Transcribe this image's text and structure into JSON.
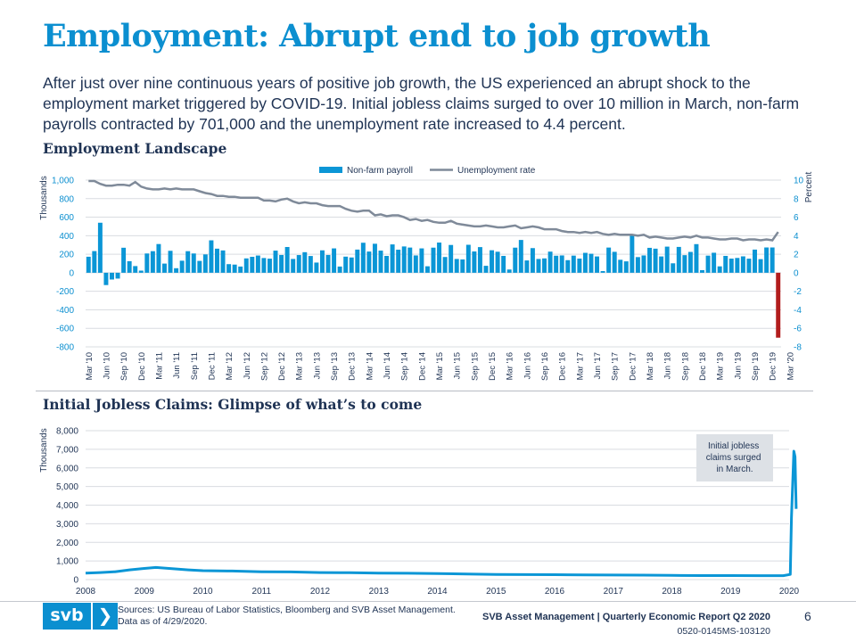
{
  "page": {
    "title": "Employment: Abrupt end to job growth",
    "subtitle": "After just over nine continuous years of positive job growth, the US experienced an abrupt shock to the employment market triggered by COVID-19. Initial jobless claims surged to over 10 million in March, non-farm payrolls contracted by 701,000 and the unemployment rate increased to 4.4 percent.",
    "section1_title": "Employment Landscape",
    "section2_title": "Initial Jobless Claims: Glimpse of what’s to come"
  },
  "footer": {
    "logo_text": "svb",
    "logo_chevron": "❯",
    "sources_line1": "Sources: US Bureau of Labor Statistics, Bloomberg and SVB Asset Management.",
    "sources_line2": "Data as of 4/29/2020.",
    "report": "SVB Asset Management | Quarterly Economic Report Q2 2020",
    "page_number": "6",
    "code": "0520-0145MS-103120"
  },
  "colors": {
    "title": "#0b8fd0",
    "text": "#1f3354",
    "bar": "#0b96d6",
    "bar_negative": "#b21d1d",
    "unemployment_line": "#7f8a99",
    "claims_line": "#0b96d6",
    "grid": "#d9dce1",
    "annotation_bg": "#dde1e6"
  },
  "chart_data": [
    {
      "type": "bar",
      "title": "Employment Landscape",
      "ylabel": "Thousands",
      "y2label": "Percent",
      "ylim": [
        -800,
        1000
      ],
      "y2lim": [
        -8,
        10
      ],
      "yticks": [
        "1,000",
        "800",
        "600",
        "400",
        "200",
        "0",
        "-200",
        "-400",
        "-600",
        "-800"
      ],
      "y2ticks": [
        "10",
        "8",
        "6",
        "4",
        "2",
        "0",
        "-2",
        "-4",
        "-6",
        "-8"
      ],
      "start": "2010-03",
      "xticklabels": [
        "Mar '10",
        "Jun '10",
        "Sep '10",
        "Dec '10",
        "Mar '11",
        "Jun '11",
        "Sep '11",
        "Dec '11",
        "Mar '12",
        "Jun '12",
        "Sep '12",
        "Dec '12",
        "Mar '13",
        "Jun '13",
        "Sep '13",
        "Dec '13",
        "Mar '14",
        "Jun '14",
        "Sep '14",
        "Dec '14",
        "Mar '15",
        "Jun '15",
        "Sep '15",
        "Dec '15",
        "Mar '16",
        "Jun '16",
        "Sep '16",
        "Dec '16",
        "Mar '17",
        "Jun '17",
        "Sep '17",
        "Dec '17",
        "Mar '18",
        "Jun '18",
        "Sep '18",
        "Dec '18",
        "Mar '19",
        "Jun '19",
        "Sep '19",
        "Dec '19",
        "Mar '20"
      ],
      "legend": [
        "Non-farm payroll",
        "Unemployment rate"
      ],
      "legend_position": "top-center",
      "series": [
        {
          "name": "Non-farm payroll",
          "kind": "bar",
          "axis": "left",
          "values": [
            173,
            234,
            540,
            -133,
            -73,
            -63,
            270,
            125,
            72,
            23,
            208,
            233,
            310,
            99,
            237,
            49,
            130,
            233,
            208,
            128,
            198,
            350,
            260,
            241,
            93,
            88,
            67,
            155,
            172,
            186,
            159,
            152,
            239,
            192,
            278,
            149,
            191,
            222,
            181,
            110,
            242,
            192,
            263,
            67,
            174,
            165,
            250,
            324,
            229,
            313,
            239,
            182,
            306,
            249,
            284,
            272,
            187,
            263,
            70,
            271,
            326,
            170,
            300,
            149,
            144,
            302,
            230,
            277,
            75,
            243,
            227,
            182,
            35,
            271,
            354,
            133,
            266,
            149,
            155,
            228,
            184,
            187,
            136,
            185,
            153,
            215,
            205,
            176,
            18,
            272,
            226,
            140,
            123,
            406,
            169,
            187,
            269,
            260,
            176,
            282,
            102,
            279,
            190,
            225,
            309,
            28,
            185,
            216,
            69,
            182,
            153,
            160,
            177,
            152,
            250,
            147,
            273,
            273,
            -701
          ]
        },
        {
          "name": "Unemployment rate",
          "kind": "line",
          "axis": "right",
          "values": [
            9.9,
            9.9,
            9.6,
            9.4,
            9.4,
            9.5,
            9.5,
            9.4,
            9.8,
            9.3,
            9.1,
            9.0,
            9.0,
            9.1,
            9.0,
            9.1,
            9.0,
            9.0,
            9.0,
            8.8,
            8.6,
            8.5,
            8.3,
            8.3,
            8.2,
            8.2,
            8.1,
            8.1,
            8.1,
            8.1,
            7.8,
            7.8,
            7.7,
            7.9,
            8.0,
            7.7,
            7.5,
            7.6,
            7.5,
            7.5,
            7.3,
            7.2,
            7.2,
            7.2,
            6.9,
            6.7,
            6.6,
            6.7,
            6.7,
            6.2,
            6.3,
            6.1,
            6.2,
            6.2,
            6.0,
            5.7,
            5.8,
            5.6,
            5.7,
            5.5,
            5.4,
            5.4,
            5.6,
            5.3,
            5.2,
            5.1,
            5.0,
            5.0,
            5.1,
            5.0,
            4.9,
            4.9,
            5.0,
            5.1,
            4.8,
            4.9,
            5.0,
            4.9,
            4.7,
            4.7,
            4.7,
            4.5,
            4.4,
            4.4,
            4.3,
            4.4,
            4.3,
            4.4,
            4.2,
            4.1,
            4.2,
            4.1,
            4.1,
            4.1,
            4.0,
            4.1,
            3.8,
            3.9,
            3.8,
            3.7,
            3.7,
            3.8,
            3.9,
            3.8,
            4.0,
            3.8,
            3.8,
            3.7,
            3.6,
            3.6,
            3.7,
            3.7,
            3.5,
            3.6,
            3.6,
            3.5,
            3.6,
            3.5,
            4.4
          ]
        }
      ]
    },
    {
      "type": "line",
      "title": "Initial Jobless Claims: Glimpse of what’s to come",
      "ylabel": "Thousands",
      "ylim": [
        0,
        8000
      ],
      "yticks": [
        "8,000",
        "7,000",
        "6,000",
        "5,000",
        "4,000",
        "3,000",
        "2,000",
        "1,000",
        "0"
      ],
      "xlim": [
        2008,
        2020
      ],
      "xticklabels": [
        "2008",
        "2009",
        "2010",
        "2011",
        "2012",
        "2013",
        "2014",
        "2015",
        "2016",
        "2017",
        "2018",
        "2019",
        "2020"
      ],
      "annotation": "Initial jobless claims surged in March.",
      "series": [
        {
          "name": "Initial jobless claims",
          "x": [
            2008.0,
            2008.25,
            2008.5,
            2008.75,
            2009.0,
            2009.2,
            2009.5,
            2009.75,
            2010.0,
            2010.5,
            2011.0,
            2011.5,
            2012.0,
            2012.5,
            2013.0,
            2013.5,
            2014.0,
            2014.5,
            2015.0,
            2015.5,
            2016.0,
            2016.5,
            2017.0,
            2017.5,
            2018.0,
            2018.5,
            2019.0,
            2019.5,
            2019.9,
            2020.02,
            2020.04,
            2020.08,
            2020.1,
            2020.12
          ],
          "values": [
            350,
            380,
            420,
            520,
            600,
            650,
            580,
            520,
            480,
            460,
            420,
            410,
            380,
            370,
            350,
            340,
            320,
            300,
            280,
            270,
            265,
            255,
            245,
            240,
            225,
            215,
            215,
            210,
            210,
            280,
            3300,
            6900,
            6600,
            3800
          ]
        }
      ]
    }
  ]
}
